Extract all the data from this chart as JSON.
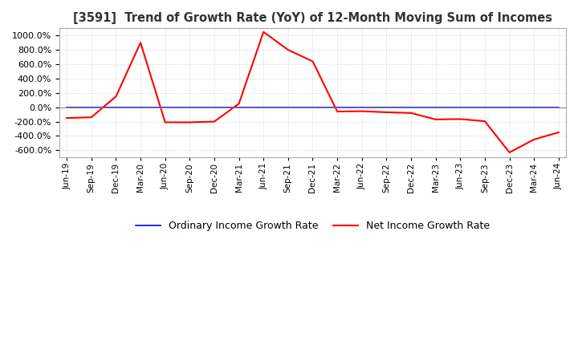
{
  "title": "[3591]  Trend of Growth Rate (YoY) of 12-Month Moving Sum of Incomes",
  "legend": [
    "Ordinary Income Growth Rate",
    "Net Income Growth Rate"
  ],
  "line_colors": [
    "blue",
    "red"
  ],
  "ylim": [
    -700,
    1100
  ],
  "yticks": [
    -600,
    -400,
    -200,
    0,
    200,
    400,
    600,
    800,
    1000
  ],
  "background_color": "#ffffff",
  "grid_color": "#cccccc",
  "x_labels": [
    "Jun-19",
    "Sep-19",
    "Dec-19",
    "Mar-20",
    "Jun-20",
    "Sep-20",
    "Dec-20",
    "Mar-21",
    "Jun-21",
    "Sep-21",
    "Dec-21",
    "Mar-22",
    "Jun-22",
    "Sep-22",
    "Dec-22",
    "Mar-23",
    "Jun-23",
    "Sep-23",
    "Dec-23",
    "Mar-24",
    "Jun-24"
  ],
  "ordinary_income": [
    -5,
    -5,
    -5,
    -5,
    -5,
    -5,
    -5,
    -5,
    -5,
    -5,
    -5,
    -5,
    -5,
    -5,
    -5,
    -5,
    -5,
    -5,
    -5,
    -5,
    -5
  ],
  "net_income": [
    -150,
    -140,
    150,
    900,
    -210,
    -210,
    -200,
    50,
    1050,
    800,
    640,
    -60,
    -55,
    -70,
    -80,
    -170,
    -165,
    -195,
    -630,
    -450,
    -350
  ]
}
